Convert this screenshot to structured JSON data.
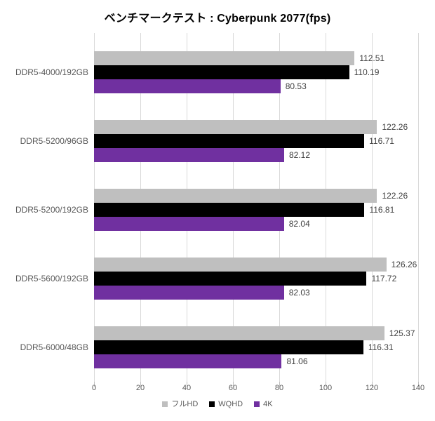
{
  "chart_data": {
    "type": "bar",
    "orientation": "horizontal",
    "title": "ベンチマークテスト : Cyberpunk 2077(fps)",
    "categories": [
      "DDR5-4000/192GB",
      "DDR5-5200/96GB",
      "DDR5-5200/192GB",
      "DDR5-5600/192GB",
      "DDR5-6000/48GB"
    ],
    "series": [
      {
        "name": "フルHD",
        "key": "fullhd",
        "color": "#BFBFBF",
        "values": [
          112.51,
          122.26,
          122.26,
          126.26,
          125.37
        ]
      },
      {
        "name": "WQHD",
        "key": "wqhd",
        "color": "#000000",
        "values": [
          110.19,
          116.71,
          116.81,
          117.72,
          116.31
        ]
      },
      {
        "name": "4K",
        "key": "4k",
        "color": "#7030A0",
        "values": [
          80.53,
          82.12,
          82.04,
          82.03,
          81.06
        ]
      }
    ],
    "xlim": [
      0,
      140
    ],
    "x_ticks": [
      0,
      20,
      40,
      60,
      80,
      100,
      120,
      140
    ],
    "grid": true,
    "legend_position": "bottom",
    "colors": {
      "gridline": "#D9D9D9",
      "tick": "#BFBFBF",
      "axis_label": "#595959",
      "value_label": "#404040",
      "title": "#000000",
      "background": "#FFFFFF"
    }
  }
}
